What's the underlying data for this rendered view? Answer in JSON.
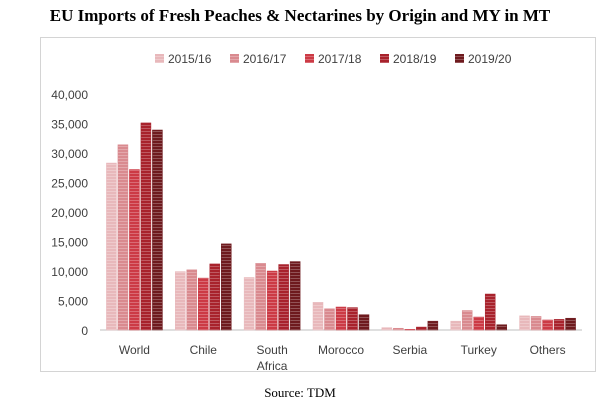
{
  "title": "EU Imports of Fresh Peaches & Nectarines by Origin and MY in MT",
  "source": "Source: TDM",
  "chart_data": {
    "type": "bar",
    "title": "EU Imports of Fresh Peaches & Nectarines by Origin and MY in MT",
    "categories": [
      [
        "World"
      ],
      [
        "Chile"
      ],
      [
        "South",
        "Africa"
      ],
      [
        "Morocco"
      ],
      [
        "Serbia"
      ],
      [
        "Turkey"
      ],
      [
        "Others"
      ]
    ],
    "series": [
      {
        "name": "2015/16",
        "color": "#e8b8bb",
        "values": [
          28300,
          9900,
          8900,
          4700,
          400,
          1500,
          2400
        ]
      },
      {
        "name": "2016/17",
        "color": "#d98a8f",
        "values": [
          31400,
          10200,
          11300,
          3600,
          300,
          3300,
          2300
        ]
      },
      {
        "name": "2017/18",
        "color": "#cc3a45",
        "values": [
          27200,
          8800,
          10000,
          3900,
          100,
          2200,
          1700
        ]
      },
      {
        "name": "2018/19",
        "color": "#a8222c",
        "values": [
          35100,
          11200,
          11100,
          3800,
          500,
          6100,
          1800
        ]
      },
      {
        "name": "2019/20",
        "color": "#6e1a1e",
        "values": [
          33900,
          14600,
          11600,
          2600,
          1500,
          900,
          2000
        ]
      }
    ],
    "yticks": [
      "0",
      "5,000",
      "10,000",
      "15,000",
      "20,000",
      "25,000",
      "30,000",
      "35,000",
      "40,000"
    ],
    "ylim": [
      0,
      40000
    ],
    "xlabel": "",
    "ylabel": "",
    "legend": "top",
    "grid": false
  }
}
